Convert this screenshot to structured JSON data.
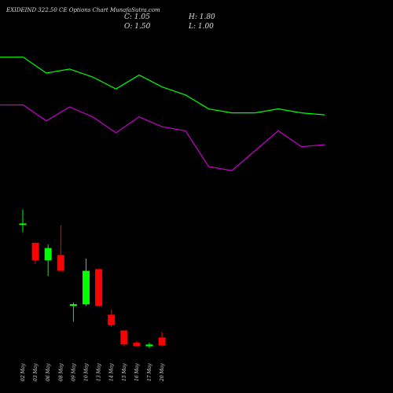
{
  "title": "EXIDEIND 322.50 CE Options Chart MunafaSutra.com",
  "ohlc": {
    "close_label": "C: 1.05",
    "high_label": "H: 1.80",
    "open_label": "O: 1.50",
    "low_label": "L: 1.00"
  },
  "colors": {
    "background": "#000000",
    "up": "#00ff00",
    "down": "#ff0000",
    "upper_line": "#00ff00",
    "lower_line": "#cc00cc",
    "text": "#dddddd"
  },
  "chart_data": {
    "type": "candlestick",
    "categories": [
      "02 May",
      "03 May",
      "06 May",
      "08 May",
      "09 May",
      "10 May",
      "13 May",
      "14 May",
      "15 May",
      "16 May",
      "17 May",
      "20 May"
    ],
    "candles": [
      {
        "open": 8.0,
        "high": 8.8,
        "low": 7.5,
        "close": 8.0
      },
      {
        "open": 6.9,
        "high": 6.9,
        "low": 5.7,
        "close": 5.9
      },
      {
        "open": 5.9,
        "high": 6.8,
        "low": 5.0,
        "close": 6.6
      },
      {
        "open": 6.2,
        "high": 7.9,
        "low": 5.3,
        "close": 5.3
      },
      {
        "open": 3.3,
        "high": 3.5,
        "low": 2.4,
        "close": 3.4
      },
      {
        "open": 3.4,
        "high": 6.0,
        "low": 3.3,
        "close": 5.3
      },
      {
        "open": 5.4,
        "high": 5.4,
        "low": 3.3,
        "close": 3.3
      },
      {
        "open": 2.8,
        "high": 3.1,
        "low": 2.1,
        "close": 2.2
      },
      {
        "open": 1.9,
        "high": 1.9,
        "low": 1.0,
        "close": 1.1
      },
      {
        "open": 1.2,
        "high": 1.3,
        "low": 1.0,
        "close": 1.0
      },
      {
        "open": 1.0,
        "high": 1.2,
        "low": 0.9,
        "close": 1.1
      },
      {
        "open": 1.5,
        "high": 1.8,
        "low": 1.0,
        "close": 1.05
      }
    ],
    "upper_line": {
      "pixel_free_values": [
        100,
        100,
        92,
        94,
        90,
        84,
        91,
        85,
        81,
        74,
        72,
        72,
        74,
        72,
        71
      ]
    },
    "lower_line": {
      "pixel_free_values": [
        76,
        76,
        68,
        75,
        70,
        62,
        70,
        65,
        63,
        45,
        43,
        53,
        63,
        55,
        56
      ]
    },
    "line_x_categories": 15
  }
}
